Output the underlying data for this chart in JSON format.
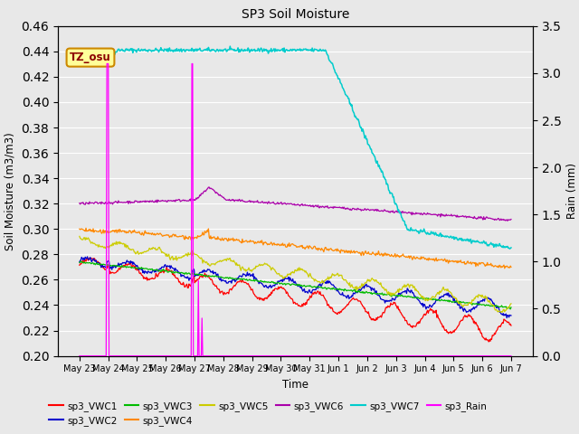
{
  "title": "SP3 Soil Moisture",
  "xlabel": "Time",
  "ylabel_left": "Soil Moisture (m3/m3)",
  "ylabel_right": "Rain (mm)",
  "ylim_left": [
    0.2,
    0.46
  ],
  "ylim_right": [
    0.0,
    3.5
  ],
  "plot_bg_color": "#e8e8e8",
  "fig_bg_color": "#e8e8e8",
  "annotation_text": "TZ_osu",
  "annotation_color": "#8B0000",
  "annotation_bg": "#FFFF99",
  "annotation_border": "#CC8800",
  "x_ticks": [
    "May 23",
    "May 24",
    "May 25",
    "May 26",
    "May 27",
    "May 28",
    "May 29",
    "May 30",
    "May 31",
    "Jun 1",
    "Jun 2",
    "Jun 3",
    "Jun 4",
    "Jun 5",
    "Jun 6",
    "Jun 7"
  ],
  "series_colors": {
    "sp3_VWC1": "#FF0000",
    "sp3_VWC2": "#0000CC",
    "sp3_VWC3": "#00BB00",
    "sp3_VWC4": "#FF8800",
    "sp3_VWC5": "#CCCC00",
    "sp3_VWC6": "#AA00AA",
    "sp3_VWC7": "#00CCCC",
    "sp3_Rain": "#FF00FF"
  },
  "n_points": 600
}
